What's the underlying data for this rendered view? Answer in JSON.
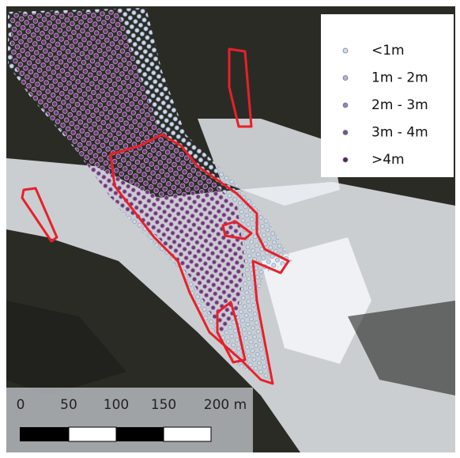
{
  "legend": {
    "items": [
      "<1m",
      "1m - 2m",
      "2m - 3m",
      "3m - 4m",
      ">4m"
    ]
  },
  "scale_bar": {
    "labels": [
      "0",
      "50",
      "100",
      "150",
      "200 m"
    ]
  }
}
